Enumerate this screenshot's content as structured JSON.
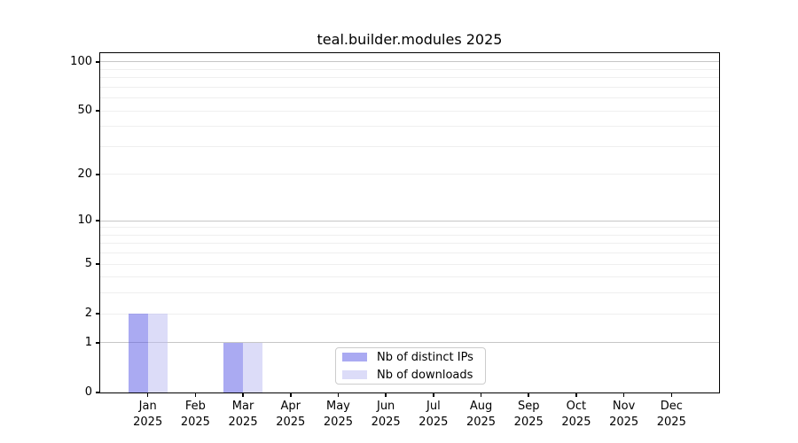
{
  "title": "teal.builder.modules 2025",
  "chart_data": {
    "type": "bar",
    "title": "teal.builder.modules 2025",
    "x_categories": [
      "Jan",
      "Feb",
      "Mar",
      "Apr",
      "May",
      "Jun",
      "Jul",
      "Aug",
      "Sep",
      "Oct",
      "Nov",
      "Dec"
    ],
    "x_year": "2025",
    "series": [
      {
        "name": "Nb of distinct IPs",
        "bar_color": "rgba(85,85,229,0.5)",
        "swatch_color": "#aaaaf2",
        "values": [
          2,
          0,
          1,
          0,
          0,
          0,
          0,
          0,
          0,
          0,
          0,
          0
        ]
      },
      {
        "name": "Nb of downloads",
        "bar_color": "rgba(185,185,241,0.5)",
        "swatch_color": "#dcdcf8",
        "values": [
          2,
          0,
          1,
          0,
          0,
          0,
          0,
          0,
          0,
          0,
          0,
          0
        ]
      }
    ],
    "yscale": "log1p",
    "ylim": [
      0,
      113
    ],
    "y_tick_values": [
      0,
      1,
      2,
      5,
      10,
      20,
      50,
      100
    ],
    "y_tick_labels": [
      "0",
      "1",
      "2",
      "5",
      "10",
      "20",
      "50",
      "100"
    ],
    "y_decade_gridlines": [
      1,
      10,
      100
    ],
    "y_minor_gridlines": [
      2,
      3,
      4,
      5,
      6,
      7,
      8,
      9,
      20,
      30,
      40,
      50,
      60,
      70,
      80,
      90
    ],
    "grid": true,
    "legend_position": "lower center"
  },
  "colors": {
    "decade_gridline": "#c6c6c6",
    "minor_gridline": "#efefef",
    "axis": "#000000",
    "background": "#ffffff",
    "legend_border": "#cccccc",
    "text": "#000000"
  }
}
